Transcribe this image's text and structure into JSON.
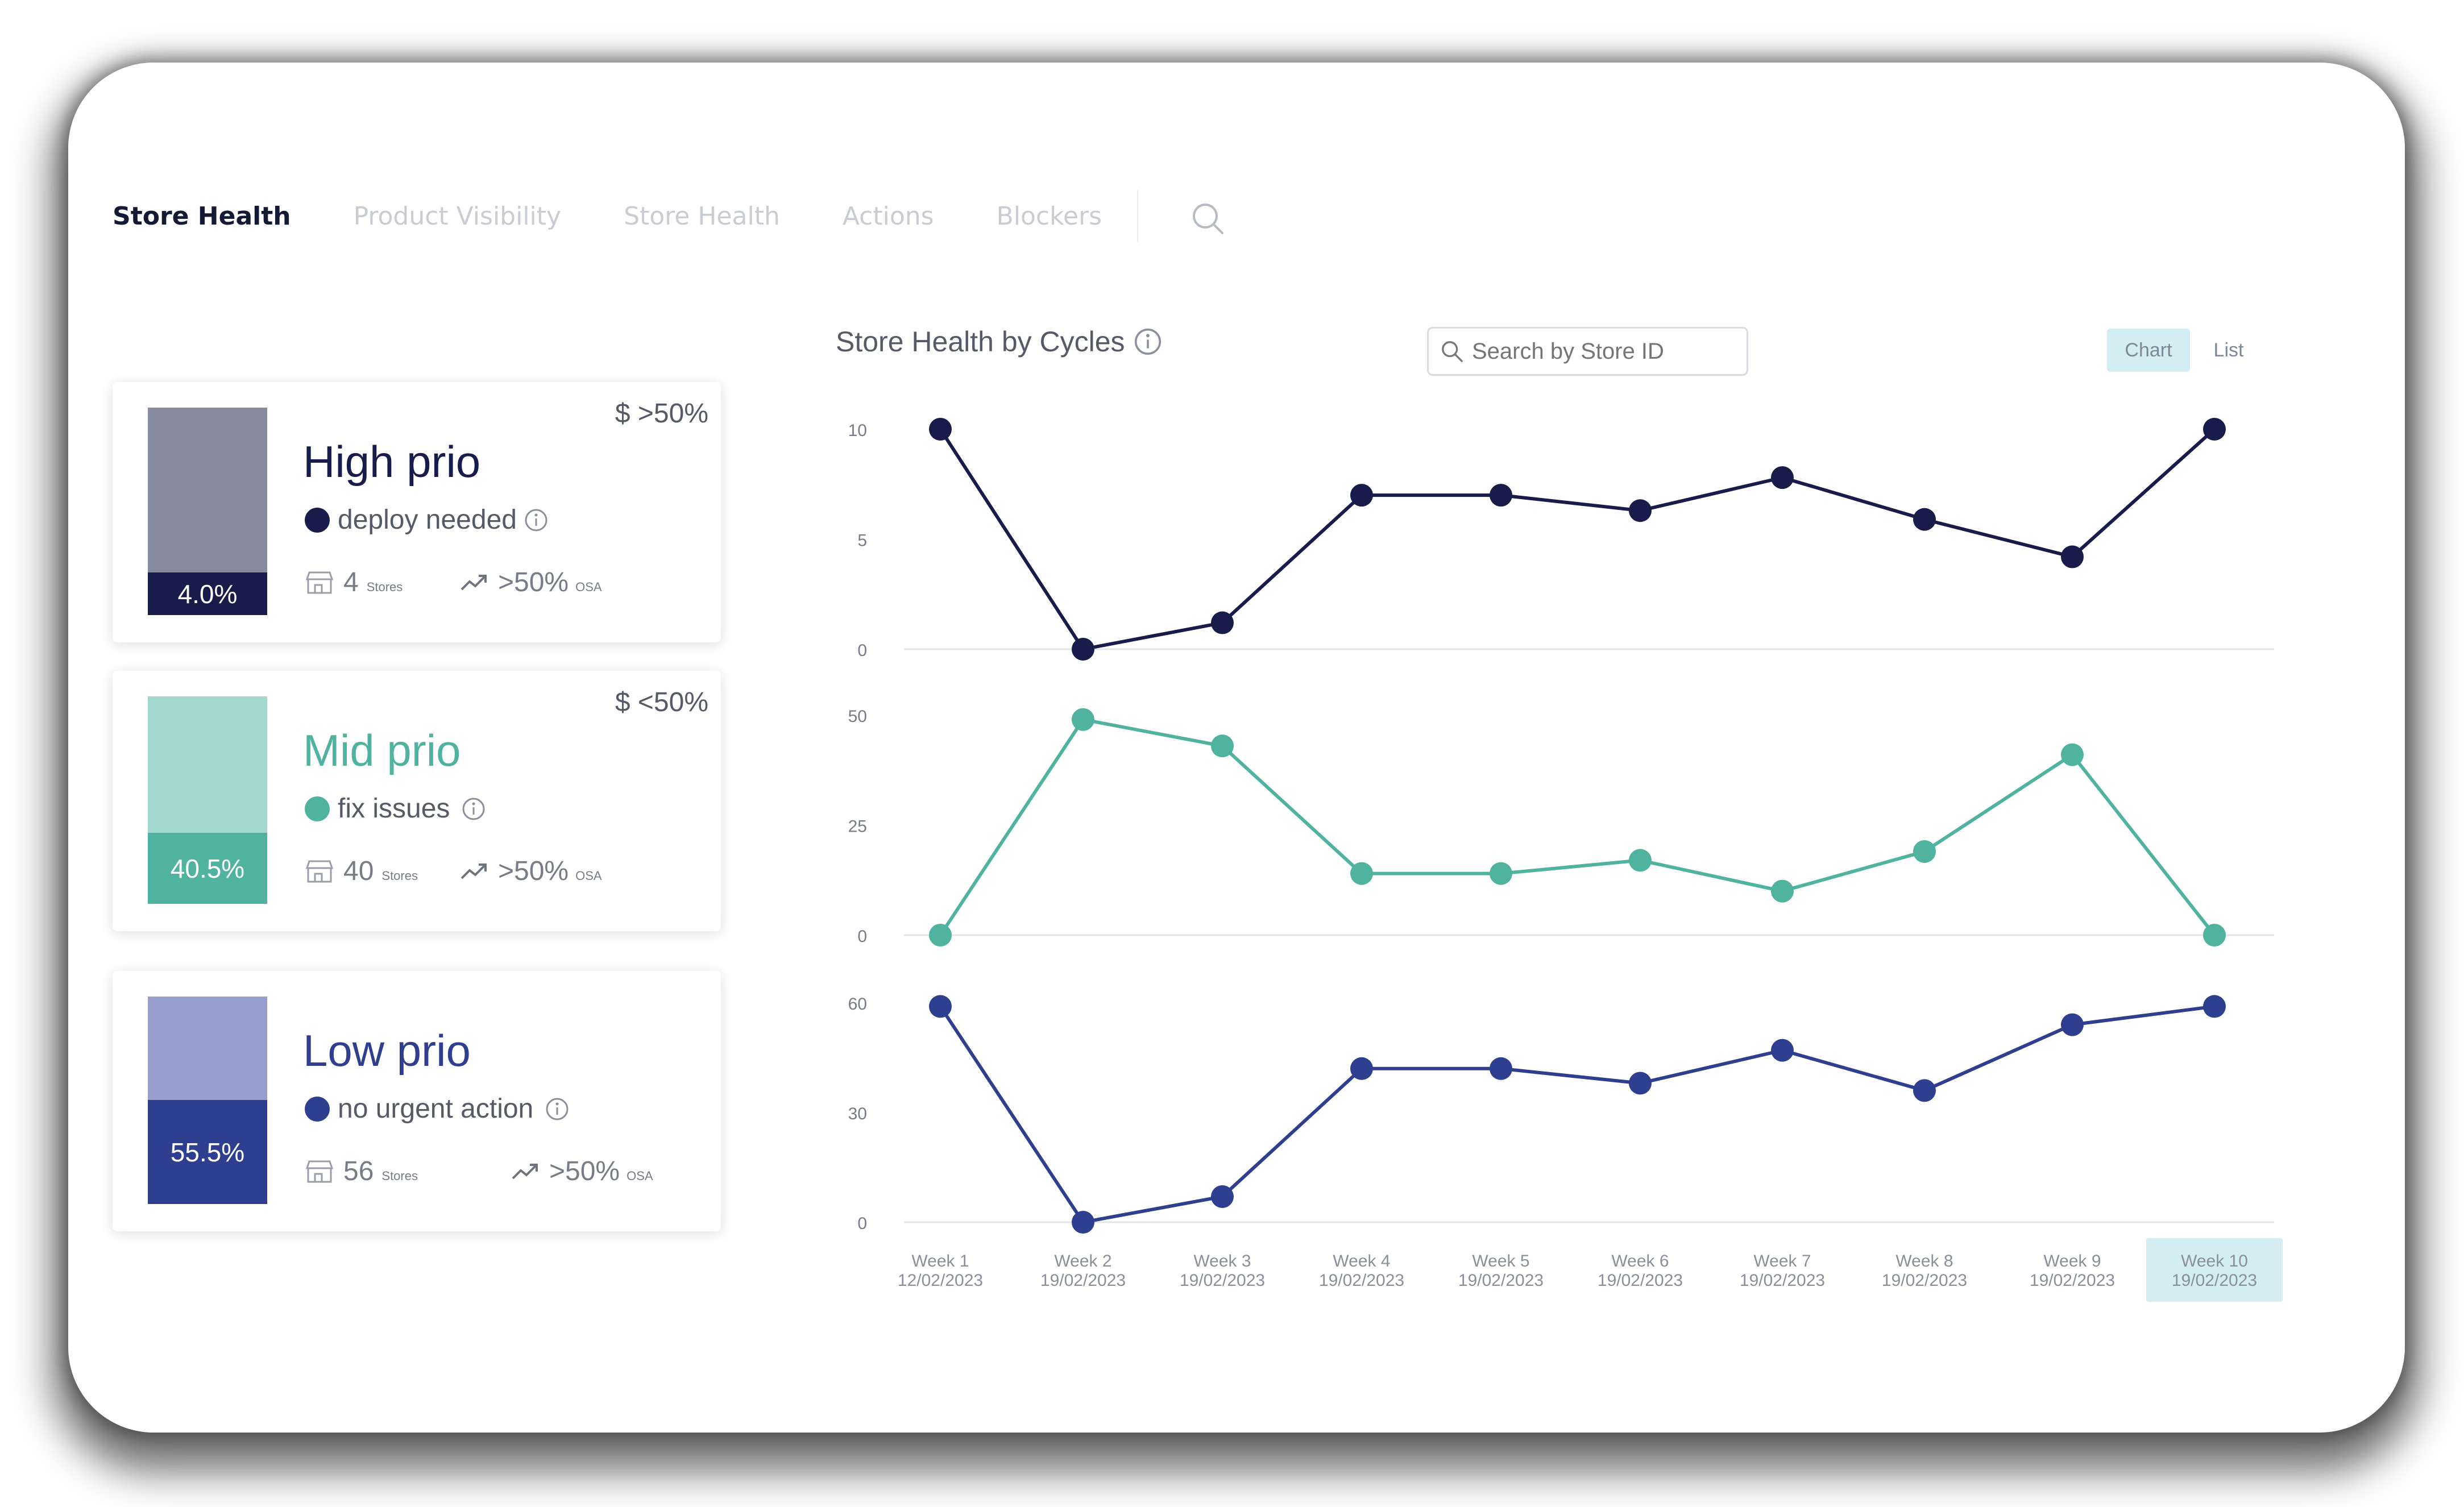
{
  "nav": {
    "tabs": [
      {
        "label": "Store Health",
        "active": true
      },
      {
        "label": "Product Visibility",
        "active": false
      },
      {
        "label": "Store Health",
        "active": false
      },
      {
        "label": "Actions",
        "active": false
      },
      {
        "label": "Blockers",
        "active": false
      }
    ],
    "search_icon": "search-icon"
  },
  "cards": [
    {
      "title": "High prio",
      "status": "deploy needed",
      "percent": "4.0%",
      "percent_value": 4.0,
      "stores_count": "4",
      "stores_label": "Stores",
      "osa": ">50%",
      "osa_label": "OSA",
      "threshold": "$ >50%",
      "color": "#171c4a",
      "light_color": "#868b9f",
      "title_color": "#171c4a"
    },
    {
      "title": "Mid prio",
      "status": "fix issues",
      "percent": "40.5%",
      "percent_value": 40.5,
      "stores_count": "40",
      "stores_label": "Stores",
      "osa": ">50%",
      "osa_label": "OSA",
      "threshold": "$ <50%",
      "color": "#4fb39f",
      "light_color": "#a2d8cd",
      "title_color": "#4fb39f"
    },
    {
      "title": "Low prio",
      "status": "no urgent action",
      "percent": "55.5%",
      "percent_value": 55.5,
      "stores_count": "56",
      "stores_label": "Stores",
      "osa": ">50%",
      "osa_label": "OSA",
      "threshold": "",
      "color": "#2f3f8f",
      "light_color": "#979fcc",
      "title_color": "#2f3f8f"
    }
  ],
  "chart_header": {
    "title": "Store Health by Cycles",
    "search_placeholder": "Search by Store ID",
    "toggle_chart": "Chart",
    "toggle_list": "List"
  },
  "chart_data": {
    "type": "line",
    "categories": [
      {
        "week": "Week 1",
        "date": "12/02/2023"
      },
      {
        "week": "Week 2",
        "date": "19/02/2023"
      },
      {
        "week": "Week 3",
        "date": "19/02/2023"
      },
      {
        "week": "Week 4",
        "date": "19/02/2023"
      },
      {
        "week": "Week 5",
        "date": "19/02/2023"
      },
      {
        "week": "Week 6",
        "date": "19/02/2023"
      },
      {
        "week": "Week 7",
        "date": "19/02/2023"
      },
      {
        "week": "Week 8",
        "date": "19/02/2023"
      },
      {
        "week": "Week 9",
        "date": "19/02/2023"
      },
      {
        "week": "Week 10",
        "date": "19/02/2023"
      }
    ],
    "highlighted_category": "Week 10",
    "panels": [
      {
        "series_key": "high",
        "color": "#171c4a",
        "ylim": [
          0,
          10
        ],
        "ticks": [
          0,
          5,
          10
        ],
        "values": [
          10,
          0,
          1.2,
          7,
          7,
          6.3,
          7.8,
          5.9,
          4.2,
          10
        ]
      },
      {
        "series_key": "mid",
        "color": "#4fb39f",
        "ylim": [
          0,
          50
        ],
        "ticks": [
          0,
          25,
          50
        ],
        "values": [
          0,
          49,
          43,
          14,
          14,
          17,
          10,
          19,
          41,
          0
        ]
      },
      {
        "series_key": "low",
        "color": "#2f3f8f",
        "ylim": [
          0,
          60
        ],
        "ticks": [
          0,
          30,
          60
        ],
        "values": [
          59,
          0,
          7,
          42,
          42,
          38,
          47,
          36,
          54,
          59
        ]
      }
    ],
    "grid": false
  }
}
